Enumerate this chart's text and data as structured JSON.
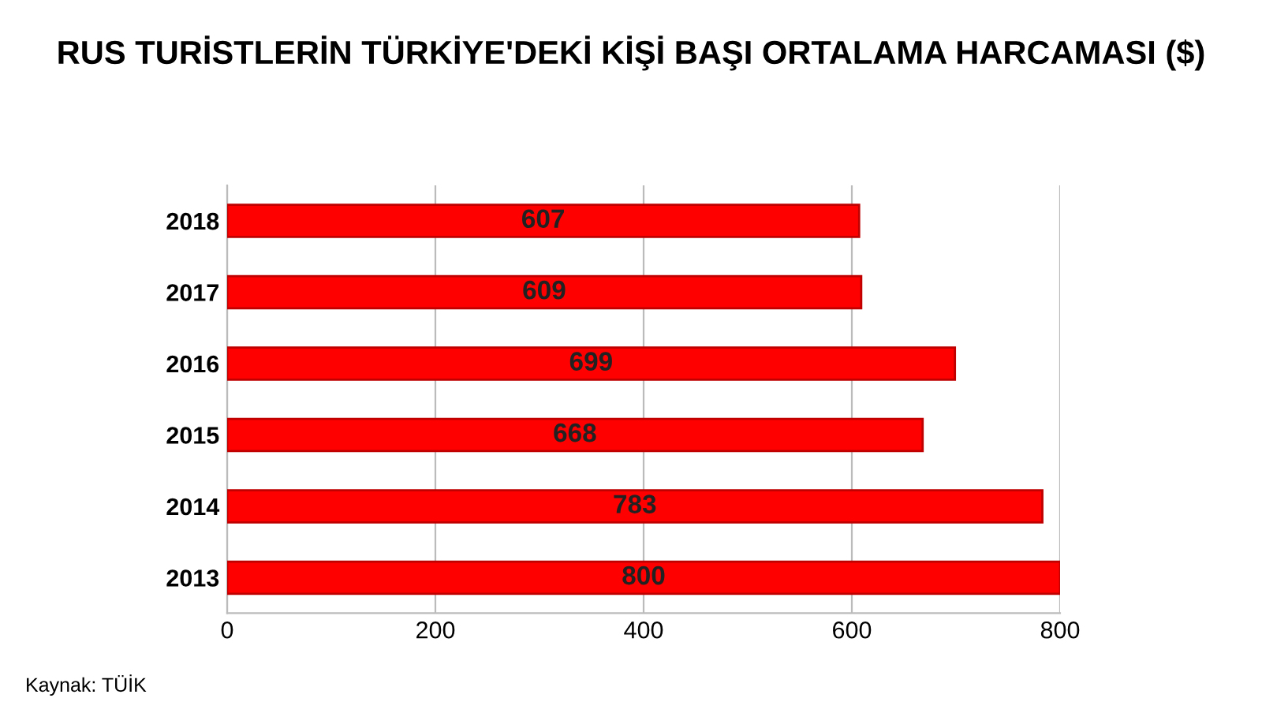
{
  "chart_data": {
    "type": "bar",
    "orientation": "horizontal",
    "title": "RUS TURİSTLERİN TÜRKİYE'DEKİ KİŞİ BAŞI ORTALAMA HARCAMASI ($)",
    "categories": [
      "2018",
      "2017",
      "2016",
      "2015",
      "2014",
      "2013"
    ],
    "values": [
      607,
      609,
      699,
      668,
      783,
      800
    ],
    "color": "#ff0000",
    "xlim": [
      0,
      800
    ],
    "xticks": [
      0,
      200,
      400,
      600,
      800
    ],
    "grid": "x",
    "data_labels": true,
    "annotations": [
      "Kaynak: TÜİK"
    ]
  }
}
